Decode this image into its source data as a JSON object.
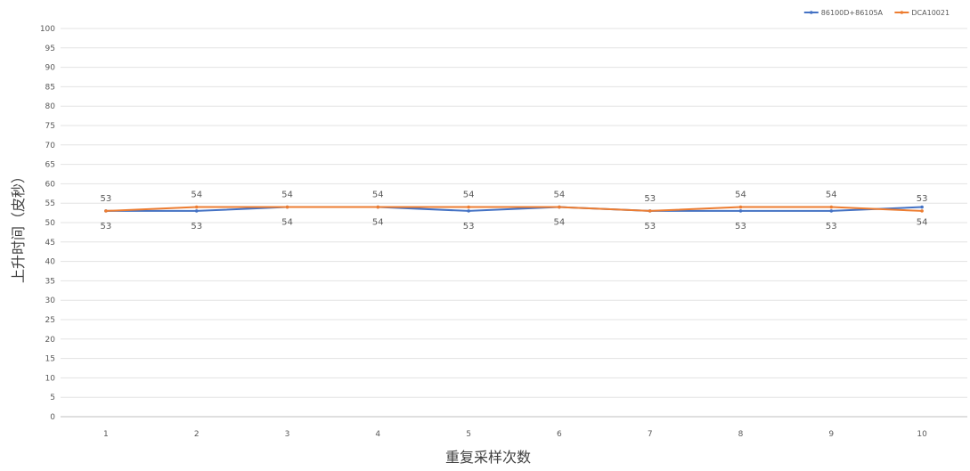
{
  "chart_data": {
    "type": "line",
    "title": "",
    "xlabel": "重复采样次数",
    "ylabel": "上升时间（皮秒）",
    "ylim": [
      0,
      100
    ],
    "ytick_step": 5,
    "grid": true,
    "legend_position": "top-right",
    "categories": [
      "1",
      "2",
      "3",
      "4",
      "5",
      "6",
      "7",
      "8",
      "9",
      "10"
    ],
    "series": [
      {
        "name": "86100D+86105A",
        "color": "#4472c4",
        "values": [
          53,
          53,
          54,
          54,
          53,
          54,
          53,
          53,
          53,
          54
        ],
        "label_position": "below"
      },
      {
        "name": "DCA10021",
        "color": "#ed7d31",
        "values": [
          53,
          54,
          54,
          54,
          54,
          54,
          53,
          54,
          54,
          53
        ],
        "label_position": "above"
      }
    ]
  }
}
